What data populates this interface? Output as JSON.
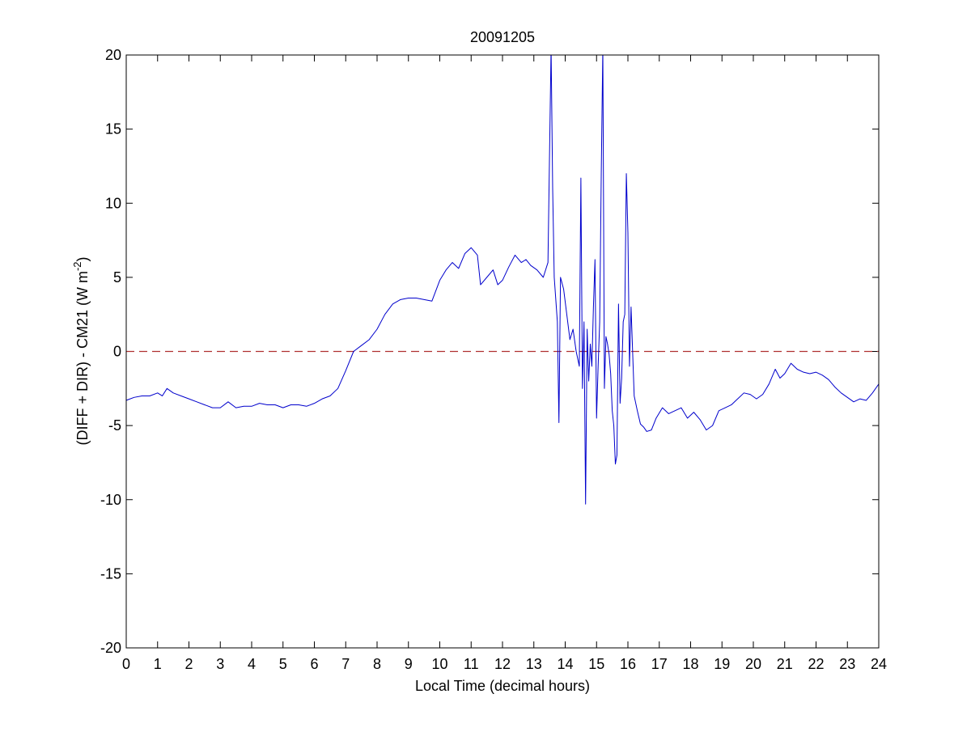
{
  "chart_data": {
    "type": "line",
    "title": "20091205",
    "xlabel": "Local Time (decimal hours)",
    "ylabel": {
      "main": "(DIFF + DIR) - CM21 (W m",
      "superscript": "-2",
      "suffix": ")"
    },
    "xlim": [
      0,
      24
    ],
    "ylim": [
      -20,
      20
    ],
    "xticks": [
      0,
      1,
      2,
      3,
      4,
      5,
      6,
      7,
      8,
      9,
      10,
      11,
      12,
      13,
      14,
      15,
      16,
      17,
      18,
      19,
      20,
      21,
      22,
      23,
      24
    ],
    "yticks": [
      -20,
      -15,
      -10,
      -5,
      0,
      5,
      10,
      15,
      20
    ],
    "grid": false,
    "legend": "none",
    "colors": {
      "series": "#0000cc",
      "reference_line": "#b03030",
      "axes": "#000000"
    },
    "reference_line": {
      "y": 0,
      "style": "dashed"
    },
    "series": [
      {
        "x": [
          0.0,
          0.25,
          0.5,
          0.75,
          1.0,
          1.15,
          1.3,
          1.5,
          1.75,
          2.0,
          2.25,
          2.5,
          2.75,
          3.0,
          3.25,
          3.5,
          3.75,
          4.0,
          4.25,
          4.5,
          4.75,
          5.0,
          5.25,
          5.5,
          5.75,
          6.0,
          6.25,
          6.5,
          6.75,
          7.0,
          7.25,
          7.5,
          7.75,
          8.0,
          8.25,
          8.5,
          8.75,
          9.0,
          9.25,
          9.5,
          9.75,
          10.0,
          10.2,
          10.4,
          10.6,
          10.8,
          11.0,
          11.2,
          11.3,
          11.5,
          11.7,
          11.85,
          12.0,
          12.2,
          12.4,
          12.6,
          12.75,
          12.9,
          13.1,
          13.3,
          13.45,
          13.55,
          13.6,
          13.65,
          13.75,
          13.8,
          13.85,
          13.95,
          14.05,
          14.15,
          14.25,
          14.35,
          14.45,
          14.5,
          14.55,
          14.6,
          14.65,
          14.7,
          14.75,
          14.8,
          14.85,
          14.9,
          14.95,
          15.0,
          15.05,
          15.1,
          15.15,
          15.2,
          15.25,
          15.3,
          15.35,
          15.4,
          15.45,
          15.5,
          15.55,
          15.6,
          15.65,
          15.7,
          15.75,
          15.8,
          15.85,
          15.9,
          15.95,
          16.0,
          16.05,
          16.1,
          16.15,
          16.2,
          16.3,
          16.4,
          16.5,
          16.6,
          16.75,
          16.9,
          17.1,
          17.3,
          17.5,
          17.7,
          17.9,
          18.1,
          18.3,
          18.5,
          18.7,
          18.9,
          19.1,
          19.3,
          19.5,
          19.7,
          19.9,
          20.1,
          20.3,
          20.5,
          20.7,
          20.85,
          21.0,
          21.2,
          21.4,
          21.6,
          21.8,
          22.0,
          22.2,
          22.4,
          22.6,
          22.8,
          23.0,
          23.2,
          23.4,
          23.6,
          23.8,
          24.0
        ],
        "y": [
          -3.3,
          -3.1,
          -3.0,
          -3.0,
          -2.8,
          -3.0,
          -2.5,
          -2.8,
          -3.0,
          -3.2,
          -3.4,
          -3.6,
          -3.8,
          -3.8,
          -3.4,
          -3.8,
          -3.7,
          -3.7,
          -3.5,
          -3.6,
          -3.6,
          -3.8,
          -3.6,
          -3.6,
          -3.7,
          -3.5,
          -3.2,
          -3.0,
          -2.5,
          -1.3,
          0.0,
          0.4,
          0.8,
          1.5,
          2.5,
          3.2,
          3.5,
          3.6,
          3.6,
          3.5,
          3.4,
          4.8,
          5.5,
          6.0,
          5.6,
          6.6,
          7.0,
          6.5,
          4.5,
          5.0,
          5.5,
          4.5,
          4.8,
          5.7,
          6.5,
          6.0,
          6.2,
          5.8,
          5.5,
          5.0,
          6.0,
          20.5,
          11.0,
          5.0,
          2.0,
          -4.8,
          5.0,
          4.2,
          2.5,
          0.8,
          1.5,
          0.0,
          -1.0,
          11.7,
          -2.5,
          2.0,
          -10.3,
          1.5,
          -2.0,
          0.5,
          -1.0,
          3.0,
          6.2,
          -4.5,
          -1.0,
          2.0,
          12.0,
          20.5,
          -2.5,
          1.0,
          0.5,
          -0.2,
          -1.5,
          -4.0,
          -5.0,
          -7.6,
          -7.0,
          3.2,
          -3.5,
          -1.8,
          2.0,
          2.5,
          12.0,
          8.0,
          -1.0,
          3.0,
          0.0,
          -3.0,
          -4.0,
          -4.9,
          -5.1,
          -5.4,
          -5.3,
          -4.5,
          -3.8,
          -4.2,
          -4.0,
          -3.8,
          -4.5,
          -4.1,
          -4.6,
          -5.3,
          -5.0,
          -4.0,
          -3.8,
          -3.6,
          -3.2,
          -2.8,
          -2.9,
          -3.2,
          -2.9,
          -2.2,
          -1.2,
          -1.8,
          -1.5,
          -0.8,
          -1.2,
          -1.4,
          -1.5,
          -1.4,
          -1.6,
          -1.9,
          -2.4,
          -2.8,
          -3.1,
          -3.4,
          -3.2,
          -3.3,
          -2.8,
          -2.2
        ]
      }
    ]
  }
}
